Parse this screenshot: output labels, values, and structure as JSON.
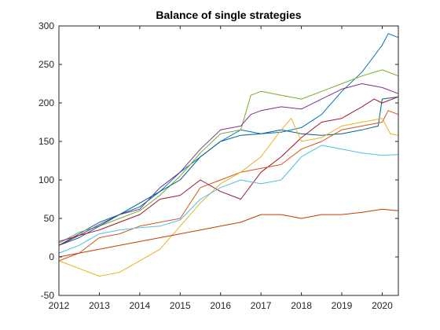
{
  "chart_data": {
    "type": "line",
    "title": "Balance of single strategies",
    "xlabel": "",
    "ylabel": "",
    "xlim": [
      2012,
      2020.4
    ],
    "ylim": [
      -50,
      300
    ],
    "xticks": [
      2012,
      2013,
      2014,
      2015,
      2016,
      2017,
      2018,
      2019,
      2020
    ],
    "yticks": [
      -50,
      0,
      50,
      100,
      150,
      200,
      250,
      300
    ],
    "grid": false,
    "legend": "none",
    "series": [
      {
        "color": "#0072BD",
        "points": [
          [
            2012,
            15
          ],
          [
            2012.5,
            30
          ],
          [
            2013,
            45
          ],
          [
            2013.5,
            55
          ],
          [
            2014,
            65
          ],
          [
            2014.5,
            85
          ],
          [
            2015,
            110
          ],
          [
            2015.5,
            130
          ],
          [
            2016,
            150
          ],
          [
            2016.5,
            165
          ],
          [
            2017,
            160
          ],
          [
            2017.5,
            162
          ],
          [
            2018,
            168
          ],
          [
            2018.5,
            185
          ],
          [
            2019,
            215
          ],
          [
            2019.5,
            240
          ],
          [
            2020,
            275
          ],
          [
            2020.15,
            290
          ],
          [
            2020.4,
            285
          ]
        ]
      },
      {
        "color": "#77AC30",
        "points": [
          [
            2012,
            18
          ],
          [
            2012.5,
            32
          ],
          [
            2013,
            40
          ],
          [
            2013.5,
            50
          ],
          [
            2014,
            60
          ],
          [
            2014.5,
            80
          ],
          [
            2015,
            105
          ],
          [
            2015.5,
            135
          ],
          [
            2016,
            160
          ],
          [
            2016.5,
            165
          ],
          [
            2016.75,
            210
          ],
          [
            2017,
            215
          ],
          [
            2017.5,
            210
          ],
          [
            2018,
            205
          ],
          [
            2018.5,
            215
          ],
          [
            2019,
            225
          ],
          [
            2019.5,
            235
          ],
          [
            2020,
            243
          ],
          [
            2020.4,
            235
          ]
        ]
      },
      {
        "color": "#7E2F8E",
        "points": [
          [
            2012,
            20
          ],
          [
            2012.5,
            28
          ],
          [
            2013,
            42
          ],
          [
            2013.5,
            55
          ],
          [
            2014,
            62
          ],
          [
            2014.5,
            90
          ],
          [
            2015,
            110
          ],
          [
            2015.5,
            140
          ],
          [
            2016,
            165
          ],
          [
            2016.5,
            170
          ],
          [
            2016.75,
            185
          ],
          [
            2017,
            190
          ],
          [
            2017.5,
            195
          ],
          [
            2018,
            192
          ],
          [
            2018.5,
            205
          ],
          [
            2019,
            218
          ],
          [
            2019.5,
            225
          ],
          [
            2020,
            220
          ],
          [
            2020.4,
            212
          ]
        ]
      },
      {
        "color": "#005E8C",
        "points": [
          [
            2012,
            15
          ],
          [
            2012.5,
            25
          ],
          [
            2013,
            40
          ],
          [
            2013.5,
            55
          ],
          [
            2014,
            70
          ],
          [
            2014.5,
            85
          ],
          [
            2015,
            100
          ],
          [
            2015.5,
            130
          ],
          [
            2016,
            150
          ],
          [
            2016.5,
            158
          ],
          [
            2017,
            160
          ],
          [
            2017.5,
            165
          ],
          [
            2018,
            160
          ],
          [
            2018.5,
            158
          ],
          [
            2019,
            160
          ],
          [
            2019.5,
            165
          ],
          [
            2019.9,
            170
          ],
          [
            2020,
            205
          ],
          [
            2020.4,
            208
          ]
        ]
      },
      {
        "color": "#A2142F",
        "points": [
          [
            2012,
            15
          ],
          [
            2012.5,
            28
          ],
          [
            2013,
            35
          ],
          [
            2013.5,
            45
          ],
          [
            2014,
            55
          ],
          [
            2014.5,
            75
          ],
          [
            2015,
            80
          ],
          [
            2015.5,
            100
          ],
          [
            2016,
            85
          ],
          [
            2016.5,
            75
          ],
          [
            2017,
            110
          ],
          [
            2017.5,
            130
          ],
          [
            2018,
            155
          ],
          [
            2018.5,
            175
          ],
          [
            2019,
            180
          ],
          [
            2019.5,
            195
          ],
          [
            2019.8,
            205
          ],
          [
            2020,
            200
          ],
          [
            2020.4,
            208
          ]
        ]
      },
      {
        "color": "#D95319",
        "points": [
          [
            2012,
            -5
          ],
          [
            2012.5,
            5
          ],
          [
            2013,
            25
          ],
          [
            2013.5,
            30
          ],
          [
            2014,
            40
          ],
          [
            2014.5,
            45
          ],
          [
            2015,
            50
          ],
          [
            2015.5,
            90
          ],
          [
            2016,
            100
          ],
          [
            2016.5,
            110
          ],
          [
            2017,
            115
          ],
          [
            2017.5,
            120
          ],
          [
            2018,
            140
          ],
          [
            2018.5,
            150
          ],
          [
            2019,
            165
          ],
          [
            2019.5,
            170
          ],
          [
            2020,
            175
          ],
          [
            2020.15,
            190
          ],
          [
            2020.4,
            185
          ]
        ]
      },
      {
        "color": "#EDB120",
        "points": [
          [
            2012,
            -5
          ],
          [
            2012.5,
            -15
          ],
          [
            2013,
            -25
          ],
          [
            2013.5,
            -20
          ],
          [
            2014,
            -5
          ],
          [
            2014.5,
            10
          ],
          [
            2015,
            40
          ],
          [
            2015.5,
            70
          ],
          [
            2016,
            95
          ],
          [
            2016.5,
            110
          ],
          [
            2017,
            130
          ],
          [
            2017.5,
            165
          ],
          [
            2017.75,
            180
          ],
          [
            2018,
            150
          ],
          [
            2018.5,
            155
          ],
          [
            2019,
            170
          ],
          [
            2019.5,
            175
          ],
          [
            2020,
            180
          ],
          [
            2020.2,
            160
          ],
          [
            2020.4,
            158
          ]
        ]
      },
      {
        "color": "#4DBEEE",
        "points": [
          [
            2012,
            5
          ],
          [
            2012.5,
            15
          ],
          [
            2013,
            30
          ],
          [
            2013.5,
            35
          ],
          [
            2014,
            38
          ],
          [
            2014.5,
            40
          ],
          [
            2015,
            48
          ],
          [
            2015.5,
            75
          ],
          [
            2016,
            90
          ],
          [
            2016.5,
            100
          ],
          [
            2017,
            95
          ],
          [
            2017.5,
            100
          ],
          [
            2018,
            130
          ],
          [
            2018.5,
            145
          ],
          [
            2019,
            140
          ],
          [
            2019.5,
            135
          ],
          [
            2020,
            132
          ],
          [
            2020.4,
            133
          ]
        ]
      },
      {
        "color": "#C04000",
        "points": [
          [
            2012,
            0
          ],
          [
            2012.5,
            5
          ],
          [
            2013,
            10
          ],
          [
            2013.5,
            15
          ],
          [
            2014,
            20
          ],
          [
            2014.5,
            25
          ],
          [
            2015,
            30
          ],
          [
            2015.5,
            35
          ],
          [
            2016,
            40
          ],
          [
            2016.5,
            45
          ],
          [
            2017,
            55
          ],
          [
            2017.5,
            55
          ],
          [
            2018,
            50
          ],
          [
            2018.5,
            55
          ],
          [
            2019,
            55
          ],
          [
            2019.5,
            58
          ],
          [
            2020,
            62
          ],
          [
            2020.4,
            60
          ]
        ]
      }
    ]
  }
}
